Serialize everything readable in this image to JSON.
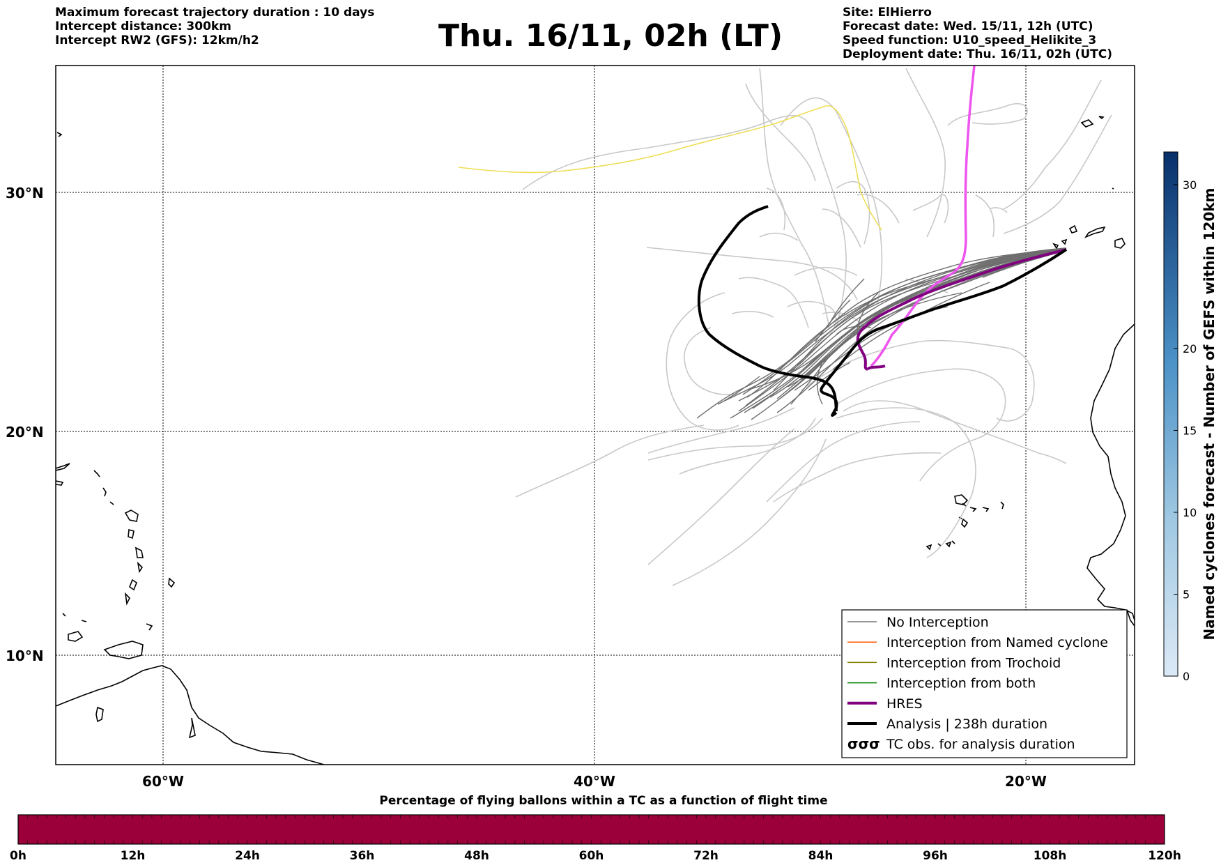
{
  "header": {
    "left_lines": [
      "Maximum forecast trajectory duration : 10 days",
      "Intercept distance: 300km",
      "Intercept RW2 (GFS):  12km/h2"
    ],
    "title": "Thu. 16/11, 02h (LT)",
    "right_lines": [
      "Site: ElHierro",
      "Forecast date: Wed. 15/11, 12h (UTC)",
      "Speed function: U10_speed_Helikite_3",
      "Deployment date: Thu. 16/11, 02h (UTC)"
    ]
  },
  "map": {
    "lat_labels": [
      "30°N",
      "20°N",
      "10°N"
    ],
    "lon_labels": [
      "60°W",
      "40°W",
      "20°W"
    ],
    "gridlines": true
  },
  "legend": {
    "items": [
      {
        "label": "No Interception",
        "color": "#777777",
        "style": "thin"
      },
      {
        "label": "Interception from Named cyclone",
        "color": "#ff5500",
        "style": "thin"
      },
      {
        "label": "Interception from Trochoid",
        "color": "#808000",
        "style": "thin"
      },
      {
        "label": "Interception from both",
        "color": "#008000",
        "style": "thin"
      },
      {
        "label": "HRES",
        "color": "#800080",
        "style": "thick"
      },
      {
        "label": "Analysis | 238h duration",
        "color": "#000000",
        "style": "thick"
      },
      {
        "label": "TC obs. for analysis duration",
        "color": "#000000",
        "style": "cyclone-icon"
      }
    ]
  },
  "colorbar": {
    "title": "Named cyclones forecast - Number of GEFS within 120km",
    "ticks": [
      "0",
      "5",
      "10",
      "15",
      "20",
      "30"
    ],
    "range": [
      0,
      32
    ]
  },
  "bottom_bar": {
    "title": "Percentage of flying ballons within a TC as a function of flight time",
    "ticks": [
      "0h",
      "12h",
      "24h",
      "36h",
      "48h",
      "60h",
      "72h",
      "84h",
      "96h",
      "108h",
      "120h"
    ],
    "fill_color": "#9b003a"
  },
  "colors": {
    "ensemble_light": "#c8c8c8",
    "ensemble_dark": "#6e6e6e",
    "hres": "#800080",
    "analysis": "#000000",
    "magenta_track": "#ee55ee",
    "yellow_track": "#eede55"
  }
}
